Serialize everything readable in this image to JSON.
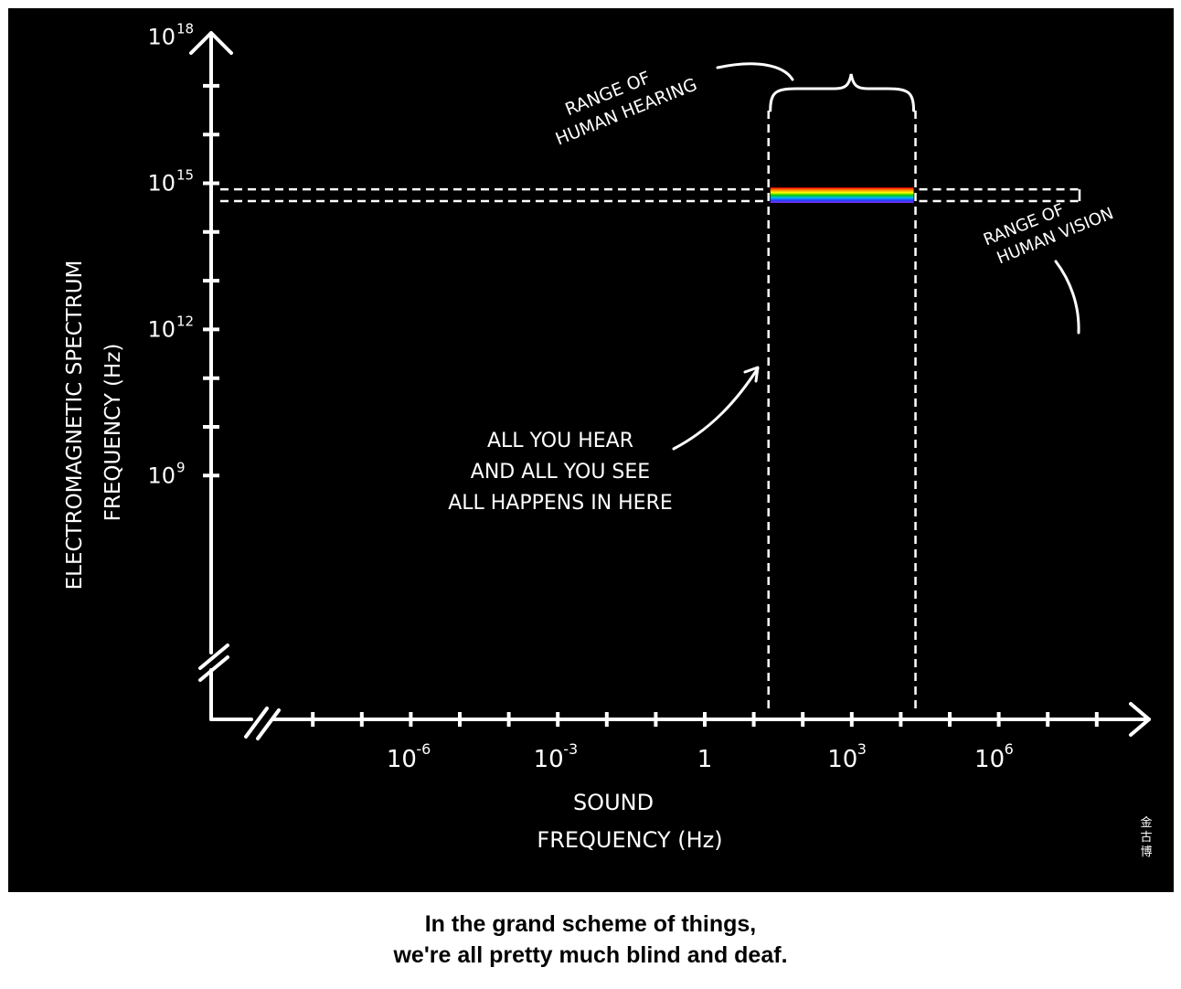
{
  "chart_data": {
    "type": "line",
    "title": "",
    "xlabel_lines": [
      "SOUND",
      "FREQUENCY (Hz)"
    ],
    "ylabel_lines": [
      "ELECTROMAGNETIC SPECTRUM",
      "FREQUENCY (Hz)"
    ],
    "x_scale": "log",
    "y_scale": "log",
    "x_range_exp": [
      -9,
      8
    ],
    "y_range_exp": [
      8,
      20
    ],
    "x_ticks": [
      {
        "exp": -6,
        "base": "10",
        "sup": "-6"
      },
      {
        "exp": -3,
        "base": "10",
        "sup": "-3"
      },
      {
        "exp": 0,
        "base": "1",
        "sup": ""
      },
      {
        "exp": 3,
        "base": "10",
        "sup": "3"
      },
      {
        "exp": 6,
        "base": "10",
        "sup": "6"
      }
    ],
    "y_ticks": [
      {
        "exp": 9,
        "base": "10",
        "sup": "9"
      },
      {
        "exp": 12,
        "base": "10",
        "sup": "12"
      },
      {
        "exp": 15,
        "base": "10",
        "sup": "15"
      },
      {
        "exp": 18,
        "base": "10",
        "sup": "18"
      }
    ],
    "hearing_range_hz": [
      20,
      20000
    ],
    "vision_range_hz": [
      430000000000000.0,
      750000000000000.0
    ],
    "visible_spectrum_colors": [
      "#ff0000",
      "#ff8c00",
      "#ffff00",
      "#00c800",
      "#00b4ff",
      "#2040ff",
      "#8a2be2"
    ],
    "annotations": {
      "hearing": [
        "RANGE OF",
        "HUMAN HEARING"
      ],
      "vision": [
        "RANGE OF",
        "HUMAN VISION"
      ],
      "center": [
        "ALL YOU HEAR",
        "AND ALL YOU SEE",
        "ALL HAPPENS IN HERE"
      ]
    },
    "signature": "金古博",
    "background": "#000000",
    "ink": "#ffffff"
  },
  "caption": {
    "line1": "In the grand scheme of things,",
    "line2": "we're all pretty much blind and deaf."
  }
}
